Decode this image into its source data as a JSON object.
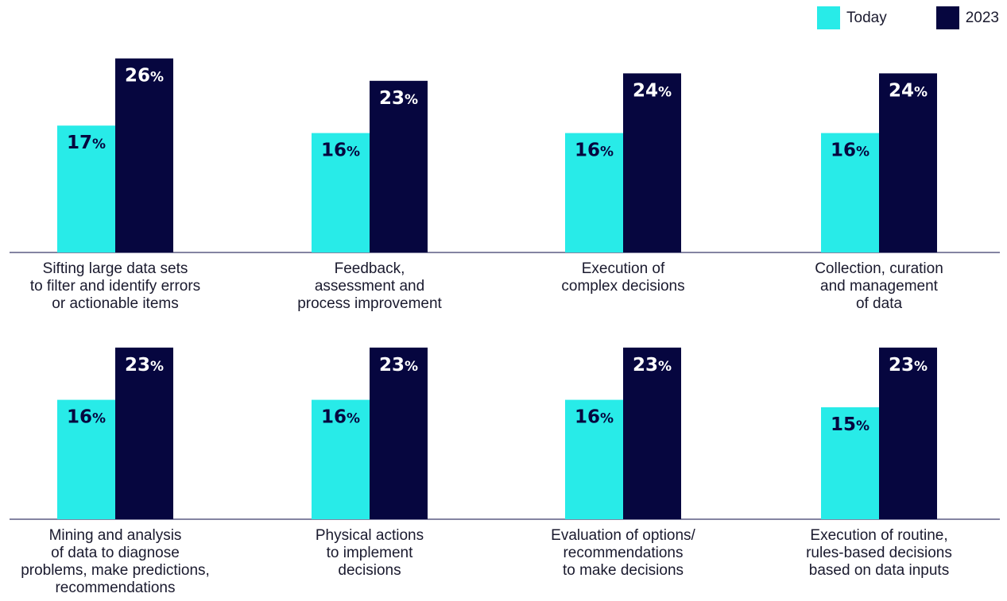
{
  "chart_data": {
    "type": "bar",
    "legend_position": "top-right",
    "series": [
      {
        "name": "Today",
        "color": "#28ebe8"
      },
      {
        "name": "2023",
        "color": "#06063f"
      }
    ],
    "panels": [
      {
        "label_lines": [
          "Sifting large data sets",
          "to filter and identify errors",
          "or actionable items"
        ],
        "values": [
          17,
          26
        ]
      },
      {
        "label_lines": [
          "Feedback,",
          "assessment and",
          "process improvement"
        ],
        "values": [
          16,
          23
        ]
      },
      {
        "label_lines": [
          "Execution of",
          "complex decisions"
        ],
        "values": [
          16,
          24
        ]
      },
      {
        "label_lines": [
          "Collection, curation",
          "and management",
          "of data"
        ],
        "values": [
          16,
          24
        ]
      },
      {
        "label_lines": [
          "Mining and analysis",
          "of data to diagnose",
          "problems, make predictions,",
          "recommendations"
        ],
        "values": [
          16,
          23
        ]
      },
      {
        "label_lines": [
          "Physical actions",
          "to implement",
          "decisions"
        ],
        "values": [
          16,
          23
        ]
      },
      {
        "label_lines": [
          "Evaluation of options/",
          "recommendations",
          "to make decisions"
        ],
        "values": [
          16,
          23
        ]
      },
      {
        "label_lines": [
          "Execution of routine,",
          "rules-based decisions",
          "based on data inputs"
        ],
        "values": [
          15,
          23
        ]
      }
    ],
    "value_suffix": "%",
    "axis_color": "#3a3a6a"
  }
}
